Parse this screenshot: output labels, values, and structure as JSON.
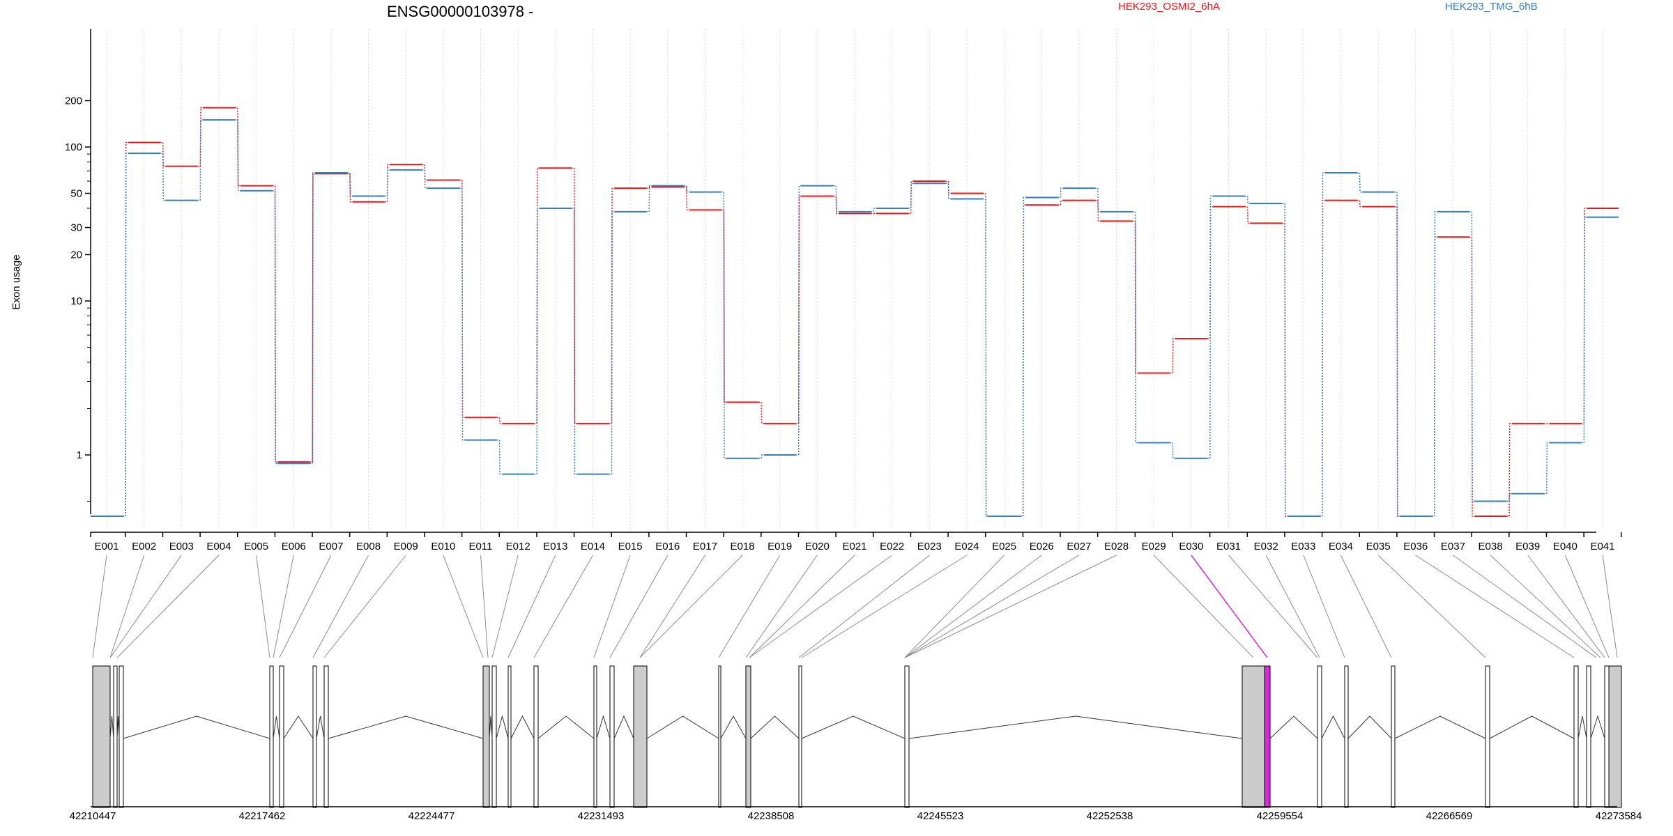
{
  "chart_data": {
    "type": "line",
    "title": "ENSG00000103978 -",
    "ylabel": "Exon usage",
    "yscale": "log",
    "ylim": [
      0.4,
      220
    ],
    "yticks": [
      1,
      10,
      20,
      30,
      50,
      100,
      200
    ],
    "categories": [
      "E001",
      "E002",
      "E003",
      "E004",
      "E005",
      "E006",
      "E007",
      "E008",
      "E009",
      "E010",
      "E011",
      "E012",
      "E013",
      "E014",
      "E015",
      "E016",
      "E017",
      "E018",
      "E019",
      "E020",
      "E021",
      "E022",
      "E023",
      "E024",
      "E025",
      "E026",
      "E027",
      "E028",
      "E029",
      "E030",
      "E031",
      "E032",
      "E033",
      "E034",
      "E035",
      "E036",
      "E037",
      "E038",
      "E039",
      "E040",
      "E041"
    ],
    "series": [
      {
        "name": "HEK293_OSMI2_6hA",
        "color": "#e41a1c",
        "values": [
          0.4,
          107,
          75,
          180,
          56,
          0.9,
          67,
          44,
          77,
          61,
          1.75,
          1.6,
          73,
          1.6,
          54,
          55,
          39,
          2.2,
          1.6,
          48,
          37,
          37,
          60,
          50,
          0.4,
          42,
          45,
          33,
          3.4,
          5.7,
          41,
          32,
          0.4,
          45,
          41,
          0.4,
          26,
          0.4,
          1.6,
          1.6,
          40
        ]
      },
      {
        "name": "HEK293_TMG_6hB",
        "color": "#377eb8",
        "values": [
          0.4,
          91,
          45,
          150,
          52,
          0.88,
          68,
          48,
          71,
          54,
          1.25,
          0.75,
          40,
          0.75,
          38,
          56,
          51,
          0.95,
          1.0,
          56,
          38,
          40,
          58,
          46,
          0.4,
          47,
          54,
          38,
          1.2,
          0.95,
          48,
          43,
          0.4,
          68,
          51,
          0.4,
          38,
          0.5,
          0.56,
          1.2,
          35
        ]
      }
    ]
  },
  "gene_model": {
    "coordinate_labels": [
      "42210447",
      "42217462",
      "42224477",
      "42231493",
      "42238508",
      "42245523",
      "42252538",
      "42259554",
      "42266569",
      "42273584"
    ],
    "highlight_exon": "E030",
    "highlight_color": "#d62ad8",
    "exon_fill": "#cccccc"
  }
}
